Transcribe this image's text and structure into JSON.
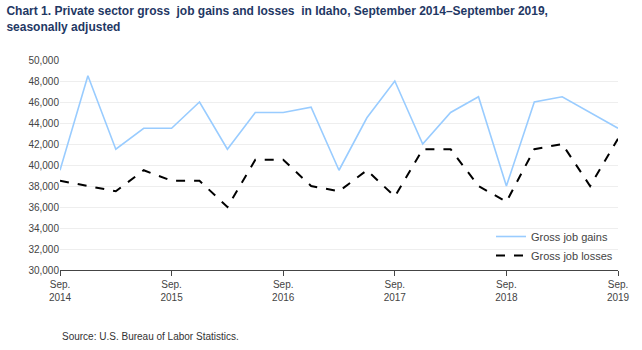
{
  "chart_data": {
    "type": "line",
    "title": "Chart 1. Private sector gross  job gains and losses  in Idaho, September 2014–September 2019,\nseasonally adjusted",
    "annotations": [
      "Source: U.S. Bureau of Labor Statistics."
    ],
    "categories": [
      "Sep.\n2014",
      null,
      null,
      null,
      "Sep.\n2015",
      null,
      null,
      null,
      "Sep.\n2016",
      null,
      null,
      null,
      "Sep.\n2017",
      null,
      null,
      null,
      "Sep.\n2018",
      null,
      null,
      null,
      "Sep.\n2019"
    ],
    "series": [
      {
        "name": "Gross job gains",
        "color": "#99ccff",
        "line_style": "solid",
        "values": [
          39500,
          48500,
          41500,
          43500,
          43500,
          46000,
          41500,
          45000,
          45000,
          45500,
          39500,
          44500,
          48000,
          42000,
          45000,
          46500,
          38000,
          46000,
          46500,
          45000,
          43500
        ]
      },
      {
        "name": "Gross job losses",
        "color": "#000000",
        "line_style": "dashed",
        "values": [
          38500,
          38000,
          37500,
          39500,
          38500,
          38500,
          36000,
          40500,
          40500,
          38000,
          37500,
          39500,
          37000,
          41500,
          41500,
          38000,
          36500,
          41500,
          42000,
          38000,
          42500
        ]
      }
    ],
    "ylim": [
      30000,
      50000
    ],
    "yticks": [
      {
        "value": 30000,
        "label": "30,000"
      },
      {
        "value": 32000,
        "label": "32,000"
      },
      {
        "value": 34000,
        "label": "34,000"
      },
      {
        "value": 36000,
        "label": "36,000"
      },
      {
        "value": 38000,
        "label": "38,000"
      },
      {
        "value": 40000,
        "label": "40,000"
      },
      {
        "value": 42000,
        "label": "42,000"
      },
      {
        "value": 44000,
        "label": "44,000"
      },
      {
        "value": 46000,
        "label": "46,000"
      },
      {
        "value": 48000,
        "label": "48,000"
      },
      {
        "value": 50000,
        "label": "50,000"
      }
    ],
    "grid": true,
    "legend": "lower right"
  }
}
